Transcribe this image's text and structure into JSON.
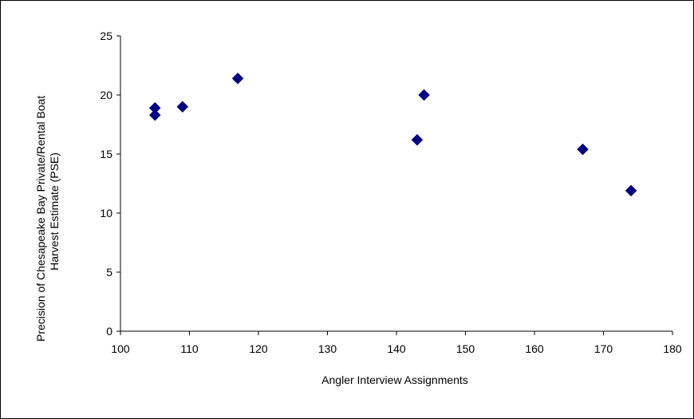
{
  "chart_data": {
    "type": "scatter",
    "title": "",
    "xlabel": "Angler Interview Assignments",
    "ylabel_lines": [
      "Precision of Chesapeake Bay Private/Rental Boat",
      "Harvest Estimate (PSE)"
    ],
    "xlim": [
      100,
      180
    ],
    "ylim": [
      0,
      25
    ],
    "x_ticks": [
      100,
      110,
      120,
      130,
      140,
      150,
      160,
      170,
      180
    ],
    "y_ticks": [
      0,
      5,
      10,
      15,
      20,
      25
    ],
    "grid": false,
    "legend": "none",
    "marker": "diamond",
    "series": [
      {
        "color": "#000080",
        "points": [
          {
            "x": 105,
            "y": 18.9
          },
          {
            "x": 105,
            "y": 18.3
          },
          {
            "x": 109,
            "y": 19.0
          },
          {
            "x": 117,
            "y": 21.4
          },
          {
            "x": 143,
            "y": 16.2
          },
          {
            "x": 144,
            "y": 20.0
          },
          {
            "x": 167,
            "y": 15.4
          },
          {
            "x": 174,
            "y": 11.9
          }
        ]
      }
    ]
  }
}
